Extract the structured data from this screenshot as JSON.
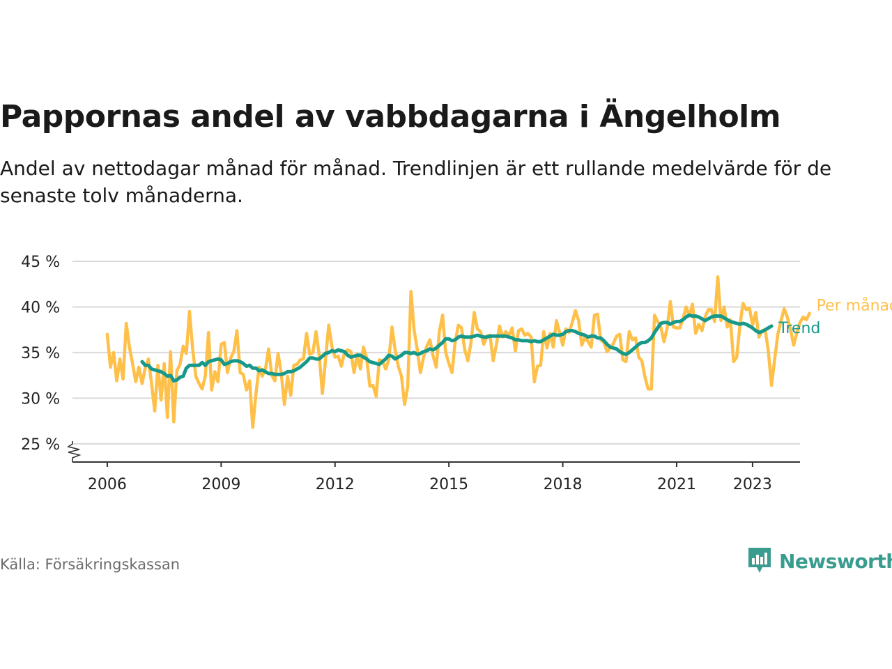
{
  "header": {
    "title": "Pappornas andel av vabbdagarna i Ängelholm",
    "subtitle": "Andel av nettodagar månad för månad. Trendlinjen är ett rullande medelvärde för de senaste tolv månaderna."
  },
  "footer": {
    "source": "Källa: Försäkringskassan",
    "brand": "Newsworthy"
  },
  "colors": {
    "monthly": "#ffc04a",
    "trend": "#17998a",
    "brand": "#3a9b8f",
    "grid": "#d9d9d9"
  },
  "chart_data": {
    "type": "line",
    "title": "Pappornas andel av vabbdagarna i Ängelholm",
    "xlabel": "",
    "ylabel": "",
    "unit": "%",
    "xlim": [
      "2005-02",
      "2024-04"
    ],
    "ylim": [
      23,
      45
    ],
    "y_ticks": [
      25,
      30,
      35,
      40,
      45
    ],
    "y_tick_labels": [
      "25 %",
      "30 %",
      "35 %",
      "40 %",
      "45 %"
    ],
    "x_ticks": [
      "2006-01",
      "2009-01",
      "2012-01",
      "2015-01",
      "2018-01",
      "2021-01",
      "2023-01"
    ],
    "x_tick_labels": [
      "2006",
      "2009",
      "2012",
      "2015",
      "2018",
      "2021",
      "2023"
    ],
    "grid": true,
    "axis_break": true,
    "series": [
      {
        "name": "Per månad",
        "start": "2006-01",
        "values": [
          37.0,
          33.4,
          35.0,
          31.9,
          34.3,
          32.1,
          38.2,
          35.6,
          33.8,
          31.8,
          33.4,
          31.6,
          33.3,
          34.3,
          31.6,
          28.6,
          33.6,
          29.8,
          33.8,
          27.9,
          35.1,
          27.4,
          33.0,
          33.7,
          35.7,
          34.9,
          39.5,
          35.4,
          32.4,
          31.6,
          31.0,
          32.4,
          37.2,
          30.9,
          32.9,
          31.8,
          35.9,
          36.1,
          32.8,
          34.4,
          35.1,
          37.4,
          32.8,
          32.6,
          30.9,
          31.9,
          26.8,
          30.5,
          33.4,
          32.4,
          33.2,
          35.4,
          32.5,
          31.9,
          34.9,
          32.7,
          29.3,
          32.4,
          30.3,
          33.6,
          33.7,
          34.2,
          34.3,
          37.1,
          34.8,
          35.0,
          37.3,
          34.7,
          30.5,
          34.2,
          38.0,
          35.7,
          34.5,
          34.6,
          33.5,
          35.0,
          35.3,
          35.1,
          32.8,
          34.8,
          33.2,
          35.6,
          34.4,
          31.3,
          31.4,
          30.2,
          34.2,
          34.1,
          33.2,
          34.2,
          37.8,
          35.3,
          33.5,
          32.4,
          29.3,
          31.3,
          41.7,
          37.5,
          35.3,
          32.8,
          34.5,
          35.7,
          36.4,
          34.6,
          33.4,
          37.3,
          39.1,
          35.0,
          33.8,
          32.8,
          36.2,
          38.0,
          37.7,
          35.3,
          34.1,
          36.1,
          39.4,
          37.6,
          37.3,
          35.9,
          36.8,
          36.9,
          34.1,
          35.8,
          37.9,
          36.7,
          37.3,
          36.9,
          37.7,
          35.2,
          37.4,
          37.6,
          36.9,
          37.1,
          36.7,
          31.8,
          33.5,
          33.6,
          37.3,
          35.5,
          37.1,
          35.6,
          38.5,
          37.2,
          35.8,
          37.6,
          37.2,
          38.3,
          39.6,
          38.5,
          35.8,
          36.7,
          36.2,
          35.6,
          39.1,
          39.2,
          36.4,
          36.1,
          35.1,
          35.5,
          36.0,
          36.8,
          37.0,
          34.2,
          34.0,
          37.3,
          36.4,
          36.6,
          34.5,
          34.1,
          32.3,
          31.0,
          31.0,
          39.1,
          38.4,
          37.8,
          36.2,
          37.7,
          40.6,
          37.8,
          37.7,
          37.7,
          38.7,
          40.0,
          39.0,
          40.3,
          37.1,
          38.1,
          37.4,
          38.9,
          39.7,
          39.7,
          38.4,
          43.3,
          38.5,
          40.0,
          37.8,
          38.6,
          34.0,
          34.5,
          38.0,
          40.4,
          39.7,
          39.9,
          38.0,
          39.4,
          36.7,
          37.4,
          37.5,
          35.1,
          31.4,
          34.3,
          37.0,
          38.5,
          39.8,
          38.9,
          37.5,
          35.8,
          37.2,
          38.3,
          38.9,
          38.6,
          39.3
        ]
      },
      {
        "name": "Trend",
        "start": "2006-12",
        "values": [
          34.0,
          33.6,
          33.6,
          33.2,
          33.1,
          33.0,
          32.9,
          32.7,
          32.4,
          32.5,
          31.9,
          32.0,
          32.3,
          32.4,
          33.3,
          33.6,
          33.6,
          33.6,
          33.6,
          33.9,
          33.6,
          34.0,
          34.1,
          34.2,
          34.3,
          34.2,
          33.7,
          33.8,
          34.0,
          34.1,
          34.1,
          34.0,
          33.8,
          33.5,
          33.6,
          33.3,
          33.3,
          33.0,
          33.1,
          32.9,
          32.7,
          32.7,
          32.6,
          32.6,
          32.6,
          32.7,
          32.9,
          32.9,
          33.0,
          33.2,
          33.4,
          33.7,
          34.0,
          34.4,
          34.4,
          34.3,
          34.3,
          34.6,
          34.9,
          35.0,
          35.2,
          35.1,
          35.3,
          35.2,
          35.1,
          34.7,
          34.5,
          34.6,
          34.7,
          34.7,
          34.5,
          34.3,
          34.0,
          33.9,
          33.8,
          33.7,
          34.0,
          34.3,
          34.7,
          34.6,
          34.3,
          34.5,
          34.7,
          35.0,
          35.0,
          34.9,
          35.0,
          34.8,
          34.9,
          35.1,
          35.2,
          35.4,
          35.3,
          35.5,
          35.8,
          36.1,
          36.5,
          36.5,
          36.3,
          36.4,
          36.7,
          36.8,
          36.7,
          36.7,
          36.7,
          36.8,
          36.9,
          36.8,
          36.7,
          36.7,
          36.8,
          36.8,
          36.8,
          36.8,
          36.8,
          36.8,
          36.7,
          36.6,
          36.4,
          36.4,
          36.3,
          36.3,
          36.3,
          36.2,
          36.3,
          36.2,
          36.2,
          36.4,
          36.6,
          36.8,
          37.0,
          36.9,
          36.9,
          37.0,
          37.3,
          37.4,
          37.4,
          37.3,
          37.1,
          37.0,
          36.9,
          36.7,
          36.8,
          36.8,
          36.6,
          36.6,
          36.3,
          35.9,
          35.6,
          35.5,
          35.4,
          35.1,
          34.9,
          34.8,
          35.0,
          35.3,
          35.6,
          35.9,
          36.1,
          36.1,
          36.3,
          36.6,
          37.2,
          37.7,
          38.2,
          38.3,
          38.3,
          38.1,
          38.3,
          38.4,
          38.4,
          38.6,
          38.9,
          39.1,
          39.0,
          39.0,
          38.9,
          38.7,
          38.5,
          38.7,
          38.9,
          39.0,
          39.0,
          39.0,
          38.8,
          38.6,
          38.4,
          38.3,
          38.2,
          38.1,
          38.2,
          38.1,
          37.9,
          37.7,
          37.4,
          37.2,
          37.3,
          37.5,
          37.7,
          37.9
        ]
      }
    ]
  }
}
